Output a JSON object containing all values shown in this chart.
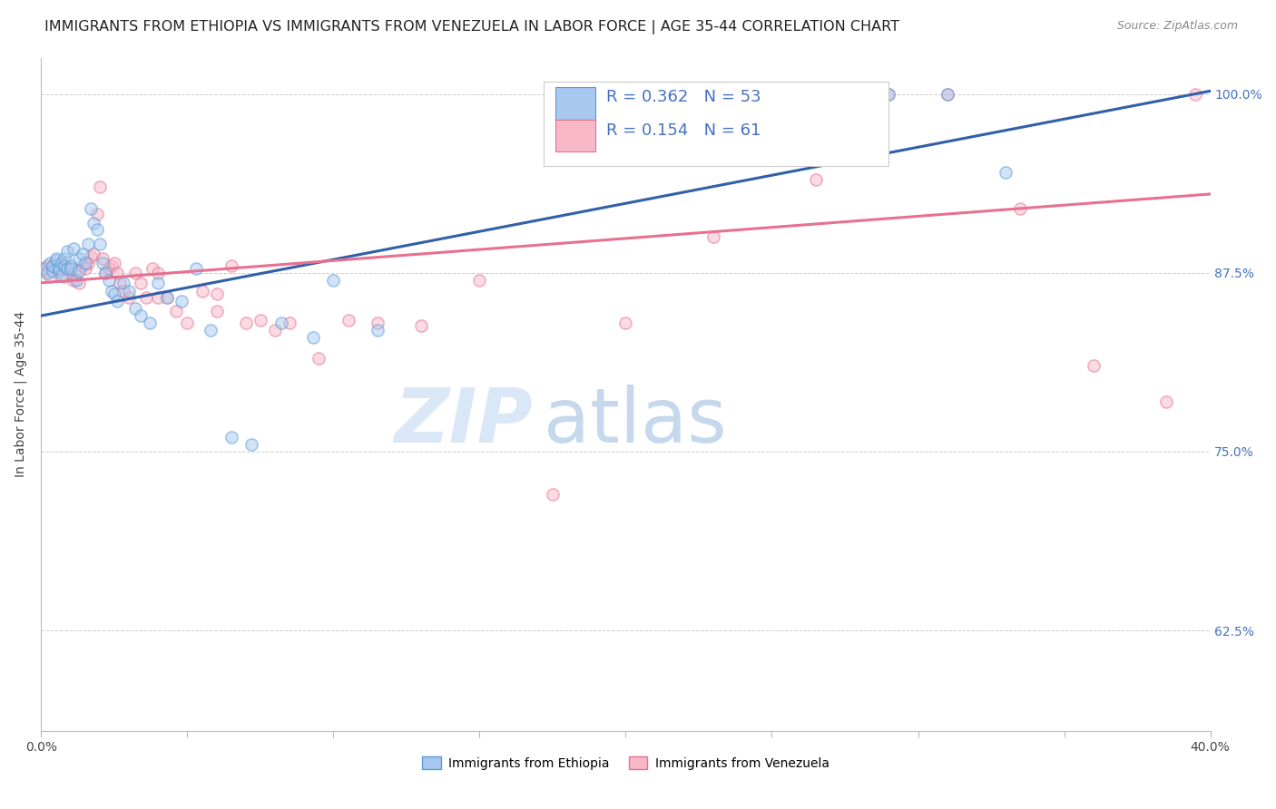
{
  "title": "IMMIGRANTS FROM ETHIOPIA VS IMMIGRANTS FROM VENEZUELA IN LABOR FORCE | AGE 35-44 CORRELATION CHART",
  "source": "Source: ZipAtlas.com",
  "ylabel": "In Labor Force | Age 35-44",
  "x_min": 0.0,
  "x_max": 0.4,
  "y_min": 0.555,
  "y_max": 1.025,
  "x_tick_positions": [
    0.0,
    0.05,
    0.1,
    0.15,
    0.2,
    0.25,
    0.3,
    0.35,
    0.4
  ],
  "x_tick_labels": [
    "0.0%",
    "",
    "",
    "",
    "",
    "",
    "",
    "",
    "40.0%"
  ],
  "y_ticks": [
    0.625,
    0.75,
    0.875,
    1.0
  ],
  "y_tick_labels": [
    "62.5%",
    "75.0%",
    "87.5%",
    "100.0%"
  ],
  "ethiopia_color": "#A8C8F0",
  "venezuela_color": "#F8B8C8",
  "ethiopia_edge_color": "#5B9BD5",
  "venezuela_edge_color": "#E87090",
  "line_ethiopia_color": "#3060A8",
  "line_venezuela_color": "#E87090",
  "R_ethiopia": 0.362,
  "N_ethiopia": 53,
  "R_venezuela": 0.154,
  "N_venezuela": 61,
  "legend_text_color": "#4472C4",
  "watermark_zip": "ZIP",
  "watermark_atlas": "atlas",
  "ethiopia_x": [
    0.001,
    0.002,
    0.003,
    0.004,
    0.004,
    0.005,
    0.005,
    0.006,
    0.006,
    0.007,
    0.007,
    0.008,
    0.008,
    0.009,
    0.009,
    0.01,
    0.01,
    0.011,
    0.012,
    0.013,
    0.013,
    0.014,
    0.015,
    0.016,
    0.017,
    0.018,
    0.019,
    0.02,
    0.021,
    0.022,
    0.023,
    0.024,
    0.025,
    0.026,
    0.028,
    0.03,
    0.032,
    0.034,
    0.037,
    0.04,
    0.043,
    0.048,
    0.053,
    0.058,
    0.065,
    0.072,
    0.082,
    0.093,
    0.1,
    0.115,
    0.29,
    0.31,
    0.33
  ],
  "ethiopia_y": [
    0.878,
    0.875,
    0.882,
    0.876,
    0.88,
    0.884,
    0.885,
    0.876,
    0.878,
    0.873,
    0.882,
    0.885,
    0.88,
    0.878,
    0.89,
    0.88,
    0.878,
    0.892,
    0.87,
    0.885,
    0.876,
    0.888,
    0.882,
    0.895,
    0.92,
    0.91,
    0.905,
    0.895,
    0.882,
    0.875,
    0.87,
    0.862,
    0.86,
    0.855,
    0.868,
    0.862,
    0.85,
    0.845,
    0.84,
    0.868,
    0.858,
    0.855,
    0.878,
    0.835,
    0.76,
    0.755,
    0.84,
    0.83,
    0.87,
    0.835,
    1.0,
    1.0,
    0.945
  ],
  "venezuela_x": [
    0.001,
    0.002,
    0.003,
    0.004,
    0.005,
    0.006,
    0.007,
    0.008,
    0.009,
    0.01,
    0.011,
    0.012,
    0.013,
    0.014,
    0.015,
    0.016,
    0.017,
    0.018,
    0.019,
    0.02,
    0.021,
    0.022,
    0.023,
    0.024,
    0.025,
    0.026,
    0.027,
    0.028,
    0.03,
    0.032,
    0.034,
    0.036,
    0.038,
    0.04,
    0.043,
    0.046,
    0.05,
    0.055,
    0.06,
    0.065,
    0.07,
    0.075,
    0.08,
    0.085,
    0.095,
    0.105,
    0.115,
    0.13,
    0.15,
    0.175,
    0.2,
    0.23,
    0.265,
    0.29,
    0.31,
    0.335,
    0.36,
    0.385,
    0.395,
    0.04,
    0.06
  ],
  "venezuela_y": [
    0.876,
    0.88,
    0.872,
    0.88,
    0.878,
    0.882,
    0.878,
    0.872,
    0.878,
    0.875,
    0.87,
    0.876,
    0.868,
    0.88,
    0.878,
    0.882,
    0.886,
    0.888,
    0.916,
    0.935,
    0.885,
    0.875,
    0.878,
    0.88,
    0.882,
    0.875,
    0.868,
    0.862,
    0.858,
    0.875,
    0.868,
    0.858,
    0.878,
    0.858,
    0.858,
    0.848,
    0.84,
    0.862,
    0.848,
    0.88,
    0.84,
    0.842,
    0.835,
    0.84,
    0.815,
    0.842,
    0.84,
    0.838,
    0.87,
    0.72,
    0.84,
    0.9,
    0.94,
    1.0,
    1.0,
    0.92,
    0.81,
    0.785,
    1.0,
    0.875,
    0.86
  ],
  "background_color": "#ffffff",
  "grid_color": "#cccccc",
  "title_fontsize": 11.5,
  "axis_label_fontsize": 10,
  "tick_fontsize": 10,
  "legend_fontsize": 13,
  "marker_size": 90,
  "marker_alpha": 0.5,
  "line_width": 2.2,
  "line_eth_y0": 0.845,
  "line_eth_y1": 1.002,
  "line_ven_y0": 0.868,
  "line_ven_y1": 0.93
}
